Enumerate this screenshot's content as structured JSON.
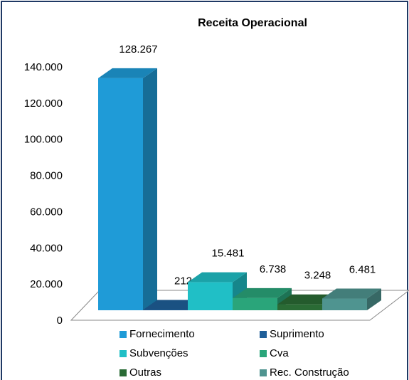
{
  "chart_data": {
    "type": "bar3d",
    "title": "Receita Operacional",
    "categories": [
      "Fornecimento",
      "Suprimento",
      "Subvenções",
      "Cva",
      "Outras",
      "Rec. Construção"
    ],
    "values": [
      128267,
      212,
      15481,
      6738,
      3248,
      6481
    ],
    "value_labels": [
      "128.267",
      "212",
      "15.481",
      "6.738",
      "3.248",
      "6.481"
    ],
    "colors": [
      "#1f9bd7",
      "#1f5f99",
      "#20bfc6",
      "#2aa57a",
      "#2a6b35",
      "#4f9490"
    ],
    "ylim": [
      0,
      140000
    ],
    "yticks": [
      0,
      {
        "value": 20000,
        "label": "20.000"
      },
      {
        "value": 40000,
        "label": "40.000"
      },
      {
        "value": 60000,
        "label": "60.000"
      },
      {
        "value": 80000,
        "label": "80.000"
      },
      {
        "value": 100000,
        "label": "100.000"
      },
      {
        "value": 120000,
        "label": "120.000"
      },
      {
        "value": 140000,
        "label": "140.000"
      }
    ]
  }
}
